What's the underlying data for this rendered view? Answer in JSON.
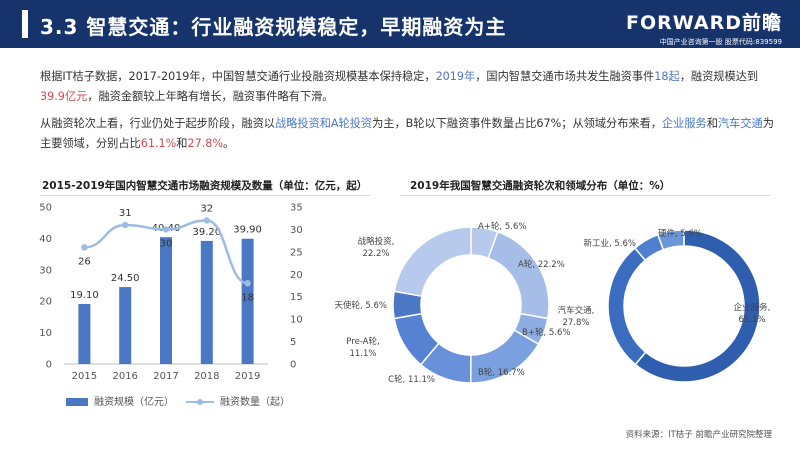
{
  "header": {
    "title": "3.3 智慧交通：行业融资规模稳定，早期融资为主",
    "logo_main": "FORWARD前瞻",
    "logo_sub": "中国产业咨询第一股  股票代码:839599"
  },
  "paragraph1": {
    "p1": "根据IT桔子数据，2017-2019年，中国智慧交通行业投融资规模基本保持稳定，",
    "year": "2019年",
    "p2": "，国内智慧交通市场共发生融资事件",
    "events": "18起",
    "p3": "，融资规模达到",
    "amount": "39.9亿元",
    "p4": "，融资金额较上年略有增长，融资事件略有下滑。"
  },
  "paragraph2": {
    "p1": "从融资轮次上看，行业仍处于起步阶段，融资以",
    "rounds": "战略投资和A轮投资",
    "p2": "为主，B轮以下融资事件数量占比67%；从领域分布来看，",
    "field1": "企业服务",
    "p3": "和",
    "field2": "汽车交通",
    "p4": "为主要领域，分别占比",
    "pct1": "61.1%",
    "p5": "和",
    "pct2": "27.8%",
    "p6": "。"
  },
  "source": "资料来源：IT桔子  前瞻产业研究院整理",
  "colors": {
    "navy": "#17336b",
    "bar": "#4a78c4",
    "line": "#9cbce6",
    "donut_ring": [
      "#b7c9ec",
      "#a6bde8",
      "#8eaee3",
      "#7aa0df",
      "#6891d9",
      "#5782d2",
      "#4a78c4"
    ],
    "donut_field": [
      "#2f5eae",
      "#3a6cc0",
      "#4f80cf",
      "#6a96dc"
    ]
  },
  "chart_data": [
    {
      "type": "bar",
      "title": "2015-2019年国内智慧交通市场融资规模及数量（单位：亿元，起）",
      "categories": [
        "2015",
        "2016",
        "2017",
        "2018",
        "2019"
      ],
      "series": [
        {
          "name": "融资规模（亿元）",
          "type": "bar",
          "axis": "left",
          "values": [
            19.1,
            24.5,
            40.4,
            39.2,
            39.9
          ],
          "labels": [
            "19.10",
            "24.50",
            "40.40",
            "39.20",
            "39.90"
          ]
        },
        {
          "name": "融资数量（起）",
          "type": "line",
          "axis": "right",
          "values": [
            26,
            31,
            30,
            32,
            18
          ],
          "labels": [
            "26",
            "31",
            "30",
            "32",
            "18"
          ]
        }
      ],
      "ylim": [
        0,
        50
      ],
      "y_ticks": [
        "0",
        "10",
        "20",
        "30",
        "40",
        "50"
      ],
      "y2lim": [
        0,
        35
      ],
      "y2_ticks": [
        "0",
        "5",
        "10",
        "15",
        "20",
        "25",
        "30",
        "35"
      ],
      "legend_position": "bottom"
    },
    {
      "type": "pie",
      "title": "2019年我国智慧交通融资轮次和领域分布（单位：%）",
      "rings": [
        {
          "name": "融资轮次",
          "categories": [
            "A+轮",
            "A轮",
            "B+轮",
            "B轮",
            "C轮",
            "Pre-A轮",
            "天使轮",
            "战略投资"
          ],
          "values": [
            5.6,
            22.2,
            5.6,
            16.7,
            11.1,
            11.1,
            5.6,
            22.2
          ],
          "labels": [
            "A+轮, 5.6%",
            "A轮, 22.2%",
            "B+轮, 5.6%",
            "B轮, 16.7%",
            "C轮, 11.1%",
            "Pre-A轮, 11.1%",
            "天使轮, 5.6%",
            "战略投资, 22.2%"
          ]
        },
        {
          "name": "领域分布",
          "categories": [
            "企业服务",
            "汽车交通",
            "新工业",
            "硬件"
          ],
          "values": [
            61.1,
            27.8,
            5.6,
            5.6
          ],
          "labels": [
            "企业服务, 61.1%",
            "汽车交通, 27.8%",
            "新工业, 5.6%",
            "硬件, 5.6%"
          ]
        }
      ]
    }
  ]
}
